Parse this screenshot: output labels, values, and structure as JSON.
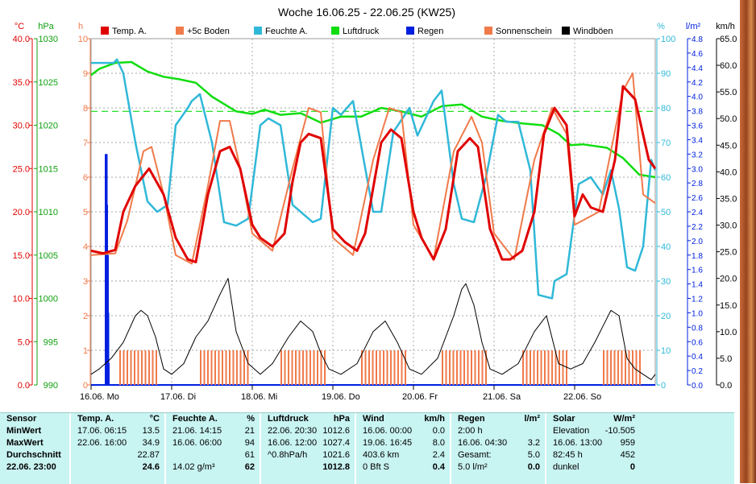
{
  "title": "Woche 16.06.25 - 22.06.25 (KW25)",
  "colors": {
    "temp": "#e00000",
    "boden": "#f07a4a",
    "feuchte": "#30b8d8",
    "luftdruck": "#10dd10",
    "regen": "#0020e0",
    "sonne": "#f07a4a",
    "wind": "#000000",
    "axis_temp": "#e00000",
    "axis_hpa": "#10a010",
    "axis_h": "#f07a4a",
    "axis_pct": "#30b8d8",
    "axis_lm2": "#0020e0",
    "axis_kmh": "#000000",
    "grid": "#888888",
    "panel_bg": "#c8f4f2"
  },
  "legend": [
    {
      "label": "Temp. A.",
      "color": "#e00000"
    },
    {
      "label": "+5c Boden",
      "color": "#f07a4a"
    },
    {
      "label": "Feuchte A.",
      "color": "#30b8d8"
    },
    {
      "label": "Luftdruck",
      "color": "#10dd10"
    },
    {
      "label": "Regen",
      "color": "#0020e0"
    },
    {
      "label": "Sonnenschein",
      "color": "#f07a4a"
    },
    {
      "label": "Windböen",
      "color": "#000000"
    }
  ],
  "axes": {
    "temp": {
      "unit": "°C",
      "ticks": [
        "40.0",
        "35.0",
        "30.0",
        "25.0",
        "20.0",
        "15.0",
        "10.0",
        "5.0",
        "0.0"
      ]
    },
    "hpa": {
      "unit": "hPa",
      "ticks": [
        "1030",
        "1025",
        "1020",
        "1015",
        "1010",
        "1005",
        "1000",
        "995",
        "990"
      ]
    },
    "h": {
      "unit": "h",
      "ticks": [
        "10",
        "9",
        "8",
        "7",
        "6",
        "5",
        "4",
        "3",
        "2",
        "1",
        "0"
      ]
    },
    "pct": {
      "unit": "%",
      "ticks": [
        "100",
        "90",
        "80",
        "70",
        "60",
        "50",
        "40",
        "30",
        "20",
        "10",
        "0"
      ]
    },
    "lm2": {
      "unit": "l/m²",
      "ticks": [
        "4.8",
        "4.6",
        "4.4",
        "4.2",
        "4.0",
        "3.8",
        "3.6",
        "3.4",
        "3.2",
        "3.0",
        "2.8",
        "2.6",
        "2.4",
        "2.2",
        "2.0",
        "1.8",
        "1.6",
        "1.4",
        "1.2",
        "1.0",
        "0.8",
        "0.6",
        "0.4",
        "0.2",
        "0.0"
      ]
    },
    "kmh": {
      "unit": "km/h",
      "ticks": [
        "65.0",
        "60.0",
        "55.0",
        "50.0",
        "45.0",
        "40.0",
        "35.0",
        "30.0",
        "25.0",
        "20.0",
        "15.0",
        "10.0",
        "5.0",
        "0.0"
      ]
    },
    "days": [
      "16.06.  Mo",
      "17.06.  Di",
      "18.06.  Mi",
      "19.06.  Do",
      "20.06.  Fr",
      "21.06.  Sa",
      "22.06.  So"
    ]
  },
  "chart_data": {
    "type": "line",
    "title": "Woche 16.06.25 - 22.06.25 (KW25)",
    "x_unit": "days since 16.06. 00:00",
    "xlim": [
      0,
      7
    ],
    "series": [
      {
        "name": "Temp. A.",
        "unit": "°C",
        "ylim": [
          0,
          40
        ],
        "x": [
          0,
          0.15,
          0.3,
          0.4,
          0.55,
          0.72,
          0.9,
          1.05,
          1.2,
          1.3,
          1.45,
          1.6,
          1.72,
          1.85,
          2.0,
          2.1,
          2.25,
          2.4,
          2.5,
          2.6,
          2.7,
          2.85,
          3.0,
          3.15,
          3.3,
          3.4,
          3.6,
          3.72,
          3.85,
          4.0,
          4.1,
          4.25,
          4.4,
          4.55,
          4.7,
          4.8,
          4.95,
          5.1,
          5.2,
          5.35,
          5.5,
          5.62,
          5.75,
          5.9,
          6.0,
          6.1,
          6.2,
          6.35,
          6.5,
          6.6,
          6.75,
          6.92,
          7.0
        ],
        "values": [
          15.5,
          15.2,
          15.6,
          20,
          23,
          25,
          22,
          17,
          14.5,
          14.2,
          22,
          27,
          27.5,
          25,
          18.5,
          17,
          16,
          17.5,
          23.5,
          28,
          29,
          28.5,
          18,
          16.5,
          15.5,
          17.5,
          28,
          29.5,
          28.5,
          20,
          17,
          14.5,
          18,
          27,
          28.5,
          27.5,
          18,
          14.5,
          14.5,
          15.5,
          20,
          29,
          32,
          30,
          19.5,
          22,
          20.5,
          20,
          26,
          34.5,
          33,
          26,
          25
        ]
      },
      {
        "name": "+5c Boden",
        "unit": "°C",
        "ylim": [
          0,
          40
        ],
        "x": [
          0,
          0.3,
          0.45,
          0.65,
          0.75,
          0.9,
          1.05,
          1.25,
          1.45,
          1.6,
          1.72,
          1.85,
          2.0,
          2.25,
          2.5,
          2.7,
          2.85,
          3.0,
          3.25,
          3.5,
          3.7,
          3.85,
          4.0,
          4.25,
          4.5,
          4.72,
          4.85,
          5.0,
          5.25,
          5.5,
          5.72,
          5.9,
          6.0,
          6.3,
          6.6,
          6.72,
          6.85,
          7.0
        ],
        "values": [
          15,
          15.2,
          19,
          27,
          27.5,
          22,
          15,
          14,
          23,
          30.5,
          30.5,
          25,
          17.5,
          15.5,
          25,
          32,
          31.5,
          17,
          15,
          26,
          32,
          31.5,
          18.5,
          14.5,
          27,
          31,
          28,
          17.5,
          14.5,
          26,
          32,
          29,
          18.5,
          20,
          34,
          36,
          22,
          21
        ]
      },
      {
        "name": "Feuchte A.",
        "unit": "%",
        "ylim": [
          0,
          100
        ],
        "x": [
          0,
          0.28,
          0.32,
          0.4,
          0.55,
          0.7,
          0.82,
          0.95,
          1.05,
          1.2,
          1.25,
          1.35,
          1.5,
          1.65,
          1.8,
          1.95,
          2.1,
          2.2,
          2.35,
          2.5,
          2.6,
          2.75,
          2.85,
          3.0,
          3.1,
          3.25,
          3.5,
          3.6,
          3.75,
          3.95,
          4.05,
          4.25,
          4.35,
          4.5,
          4.6,
          4.75,
          4.9,
          5.05,
          5.15,
          5.3,
          5.45,
          5.55,
          5.72,
          5.75,
          5.9,
          6.05,
          6.2,
          6.35,
          6.45,
          6.55,
          6.65,
          6.75,
          6.85,
          6.95,
          7.0
        ],
        "values": [
          93,
          93,
          94,
          90,
          70,
          53,
          50,
          52,
          75,
          80,
          82,
          84,
          70,
          47,
          46,
          48,
          75,
          77,
          75,
          52,
          50,
          47,
          48,
          80,
          78,
          82,
          50,
          50,
          73,
          80,
          72,
          82,
          85,
          58,
          48,
          47,
          60,
          78,
          76,
          76,
          62,
          26,
          25,
          30,
          32,
          58,
          60,
          55,
          62,
          51,
          34,
          33,
          40,
          65,
          62
        ]
      },
      {
        "name": "Luftdruck",
        "unit": "hPa",
        "ylim": [
          990,
          1030
        ],
        "x": [
          0,
          0.1,
          0.3,
          0.5,
          0.7,
          0.9,
          1.1,
          1.3,
          1.5,
          1.8,
          2.0,
          2.15,
          2.35,
          2.6,
          2.85,
          3.1,
          3.35,
          3.6,
          3.85,
          4.1,
          4.35,
          4.6,
          4.85,
          5.1,
          5.35,
          5.6,
          5.8,
          5.95,
          6.1,
          6.4,
          6.6,
          6.8,
          7.0
        ],
        "values": [
          1025.8,
          1026.5,
          1027.2,
          1027.3,
          1026.2,
          1025.6,
          1025.3,
          1024.9,
          1023.3,
          1021.6,
          1021.3,
          1021.8,
          1021.2,
          1021.4,
          1020.3,
          1021.0,
          1021.0,
          1022.0,
          1021.6,
          1021.0,
          1022.2,
          1022.4,
          1021.0,
          1020.5,
          1020.2,
          1020.0,
          1019.0,
          1017.7,
          1017.8,
          1017.4,
          1016.2,
          1014.3,
          1014.0
        ]
      },
      {
        "name": "Regen",
        "unit": "l/m²",
        "ylim": [
          0,
          4.8
        ],
        "x": [
          0.18,
          0.185,
          0.19,
          0.195,
          0.2,
          0.205,
          0.21
        ],
        "values": [
          3.2,
          3.2,
          2.5,
          1.8,
          1.8,
          1.0,
          0.3
        ]
      },
      {
        "name": "Sonnenschein",
        "unit": "h",
        "ylim": [
          0,
          10
        ],
        "intervals": [
          [
            0.35,
            0.82
          ],
          [
            1.35,
            1.95
          ],
          [
            2.35,
            2.9
          ],
          [
            3.35,
            3.92
          ],
          [
            4.35,
            4.9
          ],
          [
            5.35,
            5.92
          ],
          [
            6.35,
            6.82
          ]
        ],
        "values": [
          1,
          1,
          1,
          1,
          1,
          1,
          1
        ]
      },
      {
        "name": "Windböen",
        "unit": "km/h",
        "ylim": [
          0,
          65
        ],
        "x": [
          0,
          0.1,
          0.25,
          0.4,
          0.55,
          0.62,
          0.7,
          0.8,
          0.9,
          1.0,
          1.15,
          1.3,
          1.45,
          1.6,
          1.7,
          1.8,
          1.95,
          2.1,
          2.25,
          2.45,
          2.6,
          2.75,
          2.85,
          2.95,
          3.1,
          3.3,
          3.5,
          3.65,
          3.8,
          3.95,
          4.1,
          4.3,
          4.5,
          4.6,
          4.65,
          4.75,
          4.85,
          4.95,
          5.1,
          5.3,
          5.5,
          5.6,
          5.65,
          5.8,
          5.95,
          6.1,
          6.25,
          6.35,
          6.45,
          6.55,
          6.65,
          6.75,
          6.85,
          6.95,
          7.0
        ],
        "values": [
          2,
          3,
          5,
          8,
          13,
          14,
          13,
          9,
          3,
          2,
          4,
          9,
          12,
          17,
          20,
          10,
          4,
          2,
          4,
          9,
          12,
          10,
          6,
          3,
          2,
          4,
          10,
          12,
          8,
          3,
          2,
          5,
          13,
          18,
          19,
          15,
          8,
          3,
          2,
          4,
          10,
          12,
          13,
          4,
          3,
          4,
          8,
          11,
          14,
          13,
          5,
          3,
          2,
          1,
          2
        ]
      }
    ]
  },
  "panel": {
    "sensor": {
      "header": "Sensor",
      "rows": [
        "MinWert",
        "MaxWert",
        "Durchschnitt",
        "22.06.  23:00"
      ]
    },
    "temp": {
      "header": "Temp. A.",
      "unit": "°C",
      "rows": [
        [
          "17.06.  06:15",
          "13.5"
        ],
        [
          "22.06.  16:00",
          "34.9"
        ],
        [
          "",
          "22.87"
        ],
        [
          "",
          "24.6"
        ]
      ]
    },
    "feuchte": {
      "header": "Feuchte A.",
      "unit": "%",
      "rows": [
        [
          "21.06.  14:15",
          "21"
        ],
        [
          "16.06.  06:00",
          "94"
        ],
        [
          "",
          "61"
        ],
        [
          "14.02 g/m³",
          "62"
        ]
      ]
    },
    "luftdruck": {
      "header": "Luftdruck",
      "unit": "hPa",
      "rows": [
        [
          "22.06.  20:30",
          "1012.6"
        ],
        [
          "16.06.  12:00",
          "1027.4"
        ],
        [
          "^0.8hPa/h",
          "1021.6"
        ],
        [
          "",
          "1012.8"
        ]
      ]
    },
    "wind": {
      "header": "Wind",
      "unit": "km/h",
      "rows": [
        [
          "16.06.  00:00",
          "0.0"
        ],
        [
          "19.06.  16:45",
          "8.0"
        ],
        [
          "403.6 km",
          "2.4"
        ],
        [
          "0 Bft S",
          "0.4"
        ]
      ]
    },
    "regen": {
      "header": "Regen",
      "unit": "l/m²",
      "rows": [
        [
          "2:00 h",
          ""
        ],
        [
          "16.06.  04:30",
          "3.2"
        ],
        [
          "Gesamt:",
          "5.0"
        ],
        [
          "5.0 l/m²",
          "0.0"
        ]
      ]
    },
    "solar": {
      "header": "Solar",
      "unit": "W/m²",
      "rows": [
        [
          "Elevation",
          "-10.505"
        ],
        [
          "16.06.  13:00",
          "959"
        ],
        [
          "82:45 h",
          "452"
        ],
        [
          "dunkel",
          "0"
        ]
      ]
    }
  }
}
